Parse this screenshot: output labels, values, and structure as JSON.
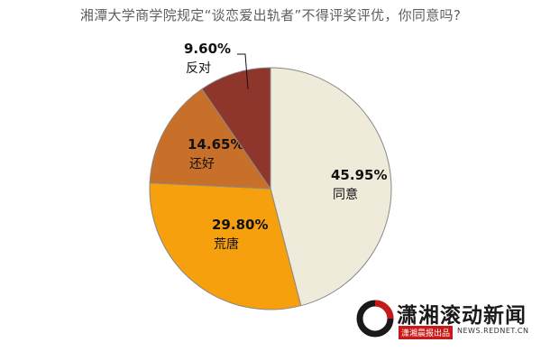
{
  "chart_data": {
    "type": "pie",
    "title": "湘潭大学商学院规定“谈恋爱出轨者”不得评奖评优，你同意吗?",
    "slices": [
      {
        "label": "同意",
        "value": 45.95,
        "display": "45.95%",
        "color": "#efebdb"
      },
      {
        "label": "荒唐",
        "value": 29.8,
        "display": "29.80%",
        "color": "#f5a00c"
      },
      {
        "label": "还好",
        "value": 14.65,
        "display": "14.65%",
        "color": "#c8702a"
      },
      {
        "label": "反对",
        "value": 9.6,
        "display": "9.60%",
        "color": "#8e352c"
      }
    ],
    "legend": "none"
  },
  "logo": {
    "name": "潇湘滚动新闻",
    "sub": "潇湘晨报出品",
    "site": "NEWS.REDNET.CN"
  }
}
